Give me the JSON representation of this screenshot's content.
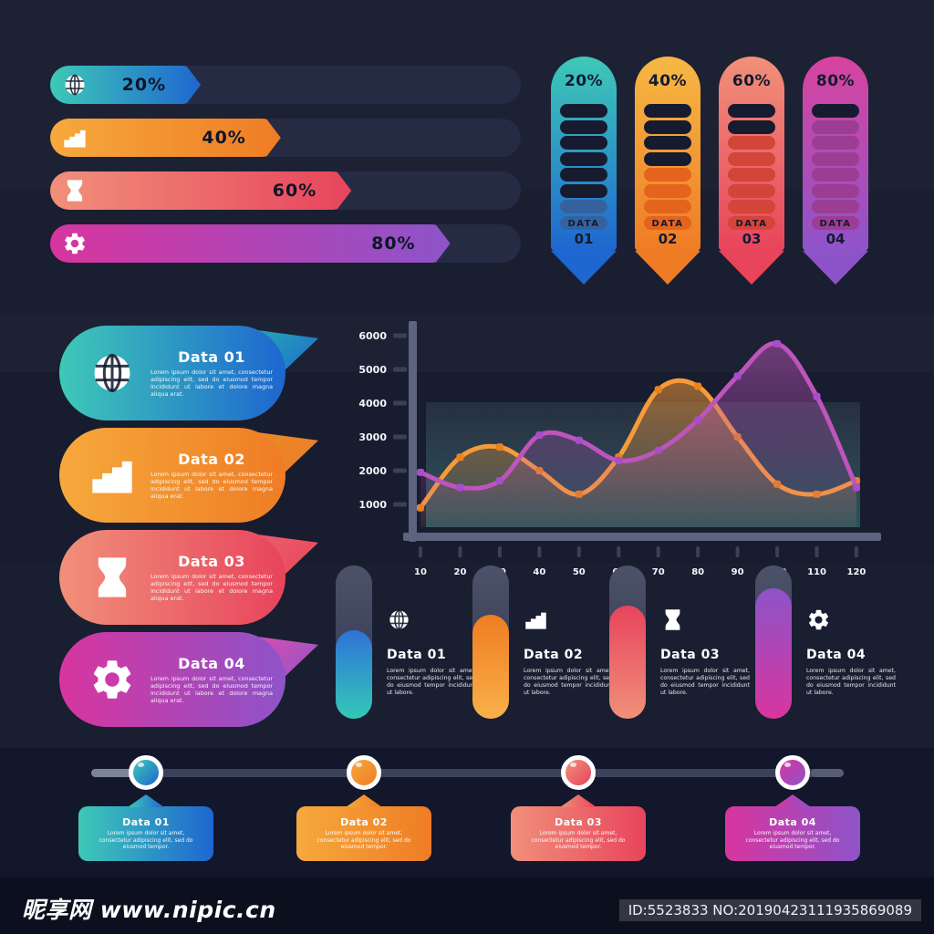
{
  "progress_bars": {
    "items": [
      {
        "label": "20%",
        "icon": "globe",
        "fill_pct": 32,
        "from": "#3ec9b7",
        "to": "#1e66d0"
      },
      {
        "label": "40%",
        "icon": "chart",
        "fill_pct": 49,
        "from": "#f6a93c",
        "to": "#ef7c25"
      },
      {
        "label": "60%",
        "icon": "hourglass",
        "fill_pct": 64,
        "from": "#f0907a",
        "to": "#e8445c"
      },
      {
        "label": "80%",
        "icon": "gear",
        "fill_pct": 85,
        "from": "#d8359f",
        "to": "#8d54c9"
      }
    ]
  },
  "capsule_meters": {
    "items": [
      {
        "percent": "20%",
        "label": "DATA",
        "number": "01",
        "segments": 8,
        "filled": 2,
        "from": "#3ec9b7",
        "to": "#1e66d0",
        "seg_color": "#35629f",
        "empty_color": "#161b30"
      },
      {
        "percent": "40%",
        "label": "DATA",
        "number": "02",
        "segments": 8,
        "filled": 4,
        "from": "#f6b844",
        "to": "#ef7c25",
        "seg_color": "#e4631d",
        "empty_color": "#161b30"
      },
      {
        "percent": "60%",
        "label": "DATA",
        "number": "03",
        "segments": 8,
        "filled": 6,
        "from": "#f0907a",
        "to": "#e8445c",
        "seg_color": "#d24538",
        "empty_color": "#161b30"
      },
      {
        "percent": "80%",
        "label": "DATA",
        "number": "04",
        "segments": 8,
        "filled": 7,
        "from": "#d8449f",
        "to": "#8d54c9",
        "seg_color": "#9c3d94",
        "empty_color": "#161b30"
      }
    ]
  },
  "banners": {
    "items": [
      {
        "title": "Data 01",
        "icon": "globe",
        "desc": "Lorem ipsum dolor sit amet, consectetur adipiscing elit, sed do eiusmod tempor incididunt ut labore et dolore magna aliqua erat.",
        "from": "#3ec9b7",
        "to": "#1e66d0",
        "ribbon": "#24a8b4"
      },
      {
        "title": "Data 02",
        "icon": "chart",
        "desc": "Lorem ipsum dolor sit amet, consectetur adipiscing elit, sed do eiusmod tempor incididunt ut labore et dolore magna aliqua erat.",
        "from": "#f6a93c",
        "to": "#ef7c25",
        "ribbon": "#e98a2b"
      },
      {
        "title": "Data 03",
        "icon": "hourglass",
        "desc": "Lorem ipsum dolor sit amet, consectetur adipiscing elit, sed do eiusmod tempor incididunt ut labore et dolore magna aliqua erat.",
        "from": "#f0907a",
        "to": "#e8445c",
        "ribbon": "#e8606a"
      },
      {
        "title": "Data 04",
        "icon": "gear",
        "desc": "Lorem ipsum dolor sit amet, consectetur adipiscing elit, sed do eiusmod tempor incididunt ut labore et dolore magna aliqua erat.",
        "from": "#d8359f",
        "to": "#8d54c9",
        "ribbon": "#d84fae"
      }
    ]
  },
  "chart_data": {
    "type": "line",
    "x": [
      10,
      20,
      30,
      40,
      50,
      60,
      70,
      80,
      90,
      100,
      110,
      120
    ],
    "series": [
      {
        "name": "orange-series",
        "color": "#f79b38",
        "marker": "#e9821f",
        "values": [
          900,
          2400,
          2700,
          2000,
          1300,
          2400,
          4400,
          4500,
          3000,
          1600,
          1300,
          1700
        ]
      },
      {
        "name": "purple-series",
        "color": "#bd55bb",
        "marker": "#a94ccd",
        "values": [
          1950,
          1500,
          1700,
          3050,
          2900,
          2300,
          2600,
          3500,
          4800,
          5760,
          4200,
          1500
        ]
      }
    ],
    "yticks": [
      6000,
      5000,
      4000,
      3000,
      2000,
      1000
    ],
    "ylim": [
      1000,
      6000
    ],
    "xlim": [
      10,
      120
    ],
    "title": "",
    "xlabel": "",
    "ylabel": "",
    "grid": false,
    "legend": false,
    "area_fill": true,
    "axis_color": "#5d6480",
    "tick_dash_color": "#3a4156",
    "label_color": "#f4f6fa",
    "panel_colors": [
      "#7aa6aa",
      "#3fa09b"
    ]
  },
  "gauges": {
    "items": [
      {
        "title": "Data 01",
        "icon": "globe",
        "fill_pct": 58,
        "desc": "Lorem ipsum dolor sit amet, consectetur adipiscing elit, sed do eiusmod tempor incididunt ut labore.",
        "from": "#2f72d8",
        "to": "#33c9b6"
      },
      {
        "title": "Data 02",
        "icon": "chart",
        "fill_pct": 68,
        "desc": "Lorem ipsum dolor sit amet, consectetur adipiscing elit, sed do eiusmod tempor incididunt ut labore.",
        "from": "#ef7d22",
        "to": "#f9b04a"
      },
      {
        "title": "Data 03",
        "icon": "hourglass",
        "fill_pct": 74,
        "desc": "Lorem ipsum dolor sit amet, consectetur adipiscing elit, sed do eiusmod tempor incididunt ut labore.",
        "from": "#e8445c",
        "to": "#f0907a"
      },
      {
        "title": "Data 04",
        "icon": "gear",
        "fill_pct": 85,
        "desc": "Lorem ipsum dolor sit amet, consectetur adipiscing elit, sed do eiusmod tempor incididunt ut labore.",
        "from": "#8d54c9",
        "to": "#d8359f"
      }
    ]
  },
  "timeline": {
    "items": [
      {
        "title": "Data 01",
        "desc": "Lorem ipsum dolor sit amet, consectetur adipiscing elit, sed do eiusmod tempor.",
        "from": "#3ec9b7",
        "to": "#1e66d0"
      },
      {
        "title": "Data 02",
        "desc": "Lorem ipsum dolor sit amet, consectetur adipiscing elit, sed do eiusmod tempor.",
        "from": "#f6a93c",
        "to": "#ef7c25"
      },
      {
        "title": "Data 03",
        "desc": "Lorem ipsum dolor sit amet, consectetur adipiscing elit, sed do eiusmod tempor.",
        "from": "#f0907a",
        "to": "#e8445c"
      },
      {
        "title": "Data 04",
        "desc": "Lorem ipsum dolor sit amet, consectetur adipiscing elit, sed do eiusmod tempor.",
        "from": "#d8359f",
        "to": "#8d54c9"
      }
    ]
  },
  "footer": {
    "watermark": "昵享网 www.nipic.cn",
    "id_text": "ID:5523833 NO:20190423111935869089"
  }
}
